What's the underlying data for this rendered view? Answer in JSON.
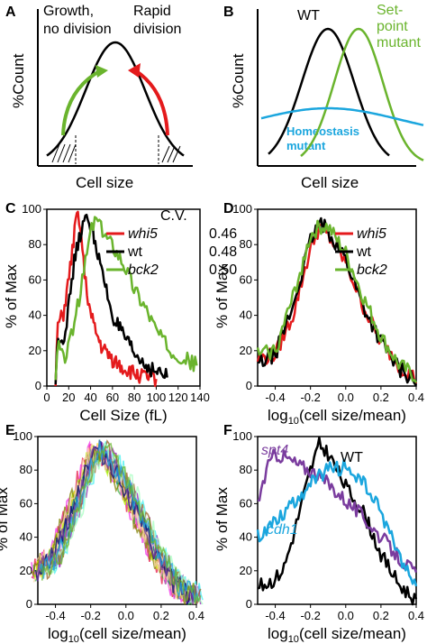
{
  "colors": {
    "red": "#e41a1c",
    "black": "#000000",
    "green": "#6ab42d",
    "blue": "#1ba6de",
    "purple": "#7a3c9e"
  },
  "panels": {
    "A": {
      "letter": "A",
      "label_left": "Growth,\nno division",
      "label_right": "Rapid\ndivision",
      "ylabel": "%Count",
      "xlabel": "Cell size"
    },
    "B": {
      "letter": "B",
      "label_wt": "WT",
      "label_setpoint": "Set-\npoint\nmutant",
      "label_homeo": "Homeostasis\nmutant",
      "ylabel": "%Count",
      "xlabel": "Cell size"
    },
    "C": {
      "letter": "C"
    },
    "D": {
      "letter": "D"
    },
    "E": {
      "letter": "E"
    },
    "F": {
      "letter": "F"
    }
  },
  "chart_data": [
    {
      "id": "A",
      "type": "line",
      "title": "",
      "xlabel": "Cell size",
      "ylabel": "%Count",
      "series": [
        {
          "x": [
            0,
            0.2,
            0.4,
            0.5,
            0.6,
            0.8,
            1.0
          ],
          "values": [
            0.02,
            0.35,
            0.85,
            1.0,
            0.85,
            0.35,
            0.02
          ]
        }
      ],
      "annotations": [
        "Growth,\nno division",
        "Rapid\ndivision"
      ]
    },
    {
      "id": "B",
      "type": "line",
      "title": "",
      "xlabel": "Cell size",
      "ylabel": "%Count",
      "series": [
        {
          "name": "WT",
          "x": [
            0,
            0.2,
            0.4,
            0.5,
            0.6,
            0.8,
            1.0
          ],
          "values": [
            0.02,
            0.35,
            0.85,
            1.0,
            0.85,
            0.35,
            0.02
          ]
        },
        {
          "name": "Set-point mutant",
          "x": [
            0.3,
            0.5,
            0.7,
            0.8,
            0.9,
            1.0
          ],
          "values": [
            0.05,
            0.4,
            0.9,
            1.0,
            0.8,
            0.4
          ]
        },
        {
          "name": "Homeostasis mutant",
          "x": [
            0,
            0.25,
            0.5,
            0.75,
            1.0
          ],
          "values": [
            0.3,
            0.42,
            0.48,
            0.42,
            0.3
          ]
        }
      ]
    },
    {
      "id": "C",
      "type": "line",
      "title": "",
      "xlabel": "Cell Size (fL)",
      "ylabel": "% of Max",
      "xticks": [
        "0",
        "20",
        "40",
        "60",
        "80",
        "100",
        "120",
        "140"
      ],
      "yticks": [
        "0",
        "20",
        "40",
        "60",
        "80",
        "100"
      ],
      "xlim": [
        0,
        140
      ],
      "ylim": [
        0,
        100
      ],
      "legend_header": "C.V.",
      "series": [
        {
          "name": "whi5",
          "cv": "0.46",
          "color": "red",
          "x": [
            8,
            10,
            15,
            20,
            25,
            28,
            30,
            32,
            35,
            40,
            45,
            50,
            60,
            70,
            80,
            90,
            100
          ],
          "values": [
            0,
            35,
            40,
            60,
            85,
            98,
            95,
            80,
            60,
            40,
            30,
            22,
            15,
            10,
            7,
            5,
            4
          ]
        },
        {
          "name": "wt",
          "cv": "0.48",
          "color": "black",
          "x": [
            8,
            10,
            15,
            20,
            25,
            30,
            35,
            38,
            42,
            50,
            60,
            70,
            80,
            90,
            100,
            110
          ],
          "values": [
            0,
            30,
            25,
            45,
            70,
            85,
            93,
            95,
            88,
            65,
            40,
            28,
            18,
            12,
            8,
            5
          ]
        },
        {
          "name": "bck2",
          "cv": "0.50",
          "color": "green",
          "x": [
            8,
            10,
            15,
            20,
            30,
            40,
            45,
            50,
            60,
            70,
            80,
            90,
            100,
            110,
            120,
            130,
            137
          ],
          "values": [
            0,
            25,
            15,
            22,
            50,
            88,
            95,
            88,
            80,
            70,
            55,
            45,
            32,
            22,
            18,
            14,
            12
          ]
        }
      ]
    },
    {
      "id": "D",
      "type": "line",
      "title": "",
      "xlabel": "log10(cell size/mean)",
      "ylabel": "% of Max",
      "xticks": [
        "-0.4",
        "-0.2",
        "0.0",
        "0.2",
        "0.4"
      ],
      "yticks": [
        "0",
        "20",
        "40",
        "60",
        "80",
        "100"
      ],
      "xlim": [
        -0.5,
        0.4
      ],
      "ylim": [
        0,
        100
      ],
      "series": [
        {
          "name": "whi5",
          "color": "red",
          "x": [
            -0.5,
            -0.4,
            -0.3,
            -0.2,
            -0.15,
            -0.1,
            0.0,
            0.1,
            0.2,
            0.3,
            0.4
          ],
          "values": [
            15,
            18,
            40,
            78,
            90,
            85,
            70,
            45,
            25,
            12,
            4
          ]
        },
        {
          "name": "wt",
          "color": "black",
          "x": [
            -0.5,
            -0.4,
            -0.3,
            -0.2,
            -0.15,
            -0.1,
            0.0,
            0.1,
            0.2,
            0.3,
            0.4
          ],
          "values": [
            12,
            18,
            45,
            82,
            92,
            88,
            72,
            45,
            25,
            10,
            3
          ]
        },
        {
          "name": "bck2",
          "color": "green",
          "x": [
            -0.5,
            -0.4,
            -0.3,
            -0.2,
            -0.15,
            -0.1,
            0.0,
            0.1,
            0.2,
            0.3,
            0.4
          ],
          "values": [
            18,
            20,
            50,
            85,
            90,
            90,
            75,
            50,
            28,
            12,
            5
          ]
        }
      ]
    },
    {
      "id": "E",
      "type": "line",
      "title": "",
      "xlabel": "log10(cell size/mean)",
      "ylabel": "% of Max",
      "xticks": [
        "-0.4",
        "-0.2",
        "0.0",
        "0.2",
        "0.4"
      ],
      "yticks": [
        "0",
        "20",
        "40",
        "60",
        "80",
        "100"
      ],
      "xlim": [
        -0.5,
        0.4
      ],
      "ylim": [
        0,
        100
      ],
      "series_note": "many overlapping unnamed strain curves",
      "curve_shape": {
        "x": [
          -0.5,
          -0.4,
          -0.3,
          -0.2,
          -0.15,
          -0.1,
          0.0,
          0.1,
          0.2,
          0.3,
          0.4
        ],
        "values": [
          20,
          28,
          55,
          85,
          92,
          88,
          70,
          48,
          25,
          10,
          5
        ]
      }
    },
    {
      "id": "F",
      "type": "line",
      "title": "",
      "xlabel": "log10(cell size/mean)",
      "ylabel": "% of Max",
      "xticks": [
        "-0.4",
        "-0.2",
        "0.0",
        "0.2",
        "0.4"
      ],
      "yticks": [
        "0",
        "20",
        "40",
        "60",
        "80",
        "100"
      ],
      "xlim": [
        -0.5,
        0.4
      ],
      "ylim": [
        0,
        100
      ],
      "series": [
        {
          "name": "WT",
          "color": "black",
          "x": [
            -0.5,
            -0.4,
            -0.35,
            -0.3,
            -0.25,
            -0.2,
            -0.15,
            -0.1,
            -0.05,
            0.0,
            0.1,
            0.2,
            0.3,
            0.4
          ],
          "values": [
            10,
            15,
            22,
            40,
            60,
            80,
            95,
            90,
            80,
            70,
            55,
            30,
            12,
            2
          ]
        },
        {
          "name": "spt4",
          "color": "purple",
          "x": [
            -0.5,
            -0.45,
            -0.4,
            -0.35,
            -0.3,
            -0.25,
            -0.2,
            -0.1,
            0.0,
            0.1,
            0.2,
            0.3,
            0.4
          ],
          "values": [
            60,
            80,
            90,
            88,
            85,
            82,
            80,
            72,
            62,
            52,
            40,
            28,
            18
          ]
        },
        {
          "name": "cdh1",
          "color": "blue",
          "x": [
            -0.5,
            -0.4,
            -0.3,
            -0.2,
            -0.1,
            0.0,
            0.1,
            0.2,
            0.3,
            0.4
          ],
          "values": [
            40,
            50,
            60,
            72,
            80,
            82,
            72,
            55,
            30,
            10
          ]
        }
      ]
    }
  ]
}
